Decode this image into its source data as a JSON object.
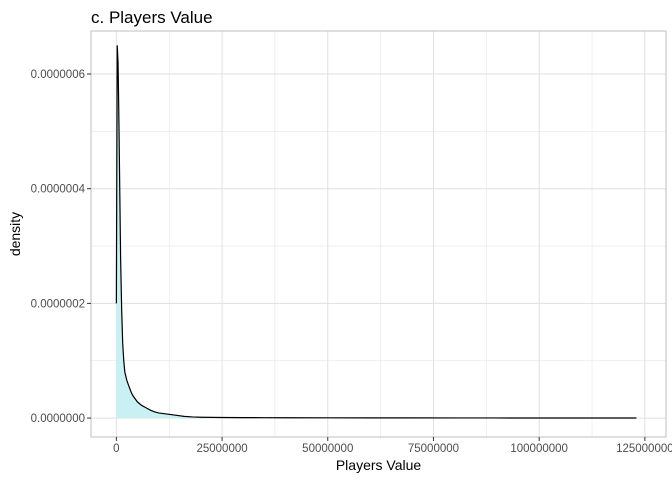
{
  "chart_data": {
    "type": "area",
    "title": "c. Players Value",
    "xlabel": "Players Value",
    "ylabel": "density",
    "xlim": [
      -6000000,
      130000000
    ],
    "ylim": [
      -3.3e-08,
      6.75e-07
    ],
    "x_ticks": [
      0,
      25000000,
      50000000,
      75000000,
      100000000,
      125000000
    ],
    "x_tick_labels": [
      "0",
      "25000000",
      "50000000",
      "75000000",
      "100000000",
      "125000000"
    ],
    "y_ticks": [
      0,
      2e-07,
      4e-07,
      6e-07
    ],
    "y_tick_labels": [
      "0.0000000",
      "0.0000002",
      "0.0000004",
      "0.0000006"
    ],
    "grid": true,
    "colors": {
      "fill": "#c9f0f2",
      "line": "#000000",
      "grid": "#e0e0e0",
      "panel_border": "#bfbfbf"
    },
    "series": [
      {
        "x": [
          0,
          200000,
          400000,
          600000,
          800000,
          1000000,
          1250000,
          1500000,
          1750000,
          2000000,
          2500000,
          3000000,
          3500000,
          4000000,
          5000000,
          6000000,
          7000000,
          8000000,
          9000000,
          10000000,
          12000000,
          14000000,
          16000000,
          18000000,
          20000000,
          25000000,
          30000000,
          35000000,
          40000000,
          50000000,
          60000000,
          70000000,
          80000000,
          90000000,
          100000000,
          110000000,
          118500000,
          123000000
        ],
        "y": [
          2e-07,
          6.5e-07,
          6.2e-07,
          5.2e-07,
          4e-07,
          2.8e-07,
          1.9e-07,
          1.3e-07,
          1e-07,
          8e-08,
          6.5e-08,
          5.5e-08,
          4.5e-08,
          3.8e-08,
          2.8e-08,
          2.2e-08,
          1.8e-08,
          1.4e-08,
          1.1e-08,
          9e-09,
          7e-09,
          5e-09,
          3e-09,
          2e-09,
          1.5e-09,
          1e-09,
          8e-10,
          7e-10,
          6e-10,
          5e-10,
          4e-10,
          3e-10,
          2e-10,
          2e-10,
          1e-10,
          1e-10,
          1e-10,
          1e-10
        ]
      }
    ]
  }
}
